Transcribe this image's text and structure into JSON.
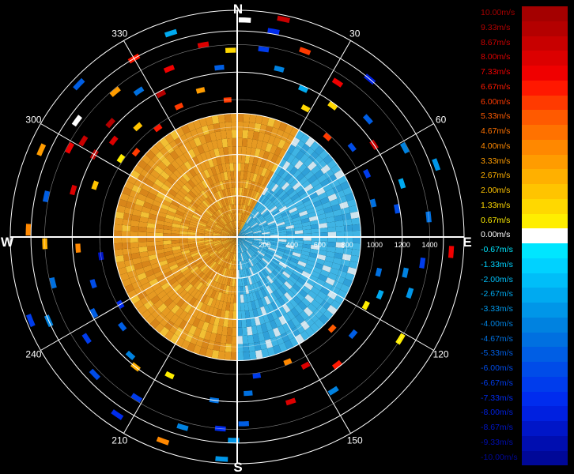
{
  "chart_data": {
    "type": "polar-radar",
    "cardinals": {
      "n": "N",
      "e": "E",
      "s": "S",
      "w": "W"
    },
    "angle_labels": [
      {
        "deg": 30,
        "text": "30"
      },
      {
        "deg": 60,
        "text": "60"
      },
      {
        "deg": 120,
        "text": "120"
      },
      {
        "deg": 150,
        "text": "150"
      },
      {
        "deg": 210,
        "text": "210"
      },
      {
        "deg": 240,
        "text": "240"
      },
      {
        "deg": 300,
        "text": "300"
      },
      {
        "deg": 330,
        "text": "330"
      }
    ],
    "range_rings": [
      200,
      400,
      600,
      800,
      1000,
      1200,
      1400
    ],
    "range_labels": [
      "200",
      "400",
      "600",
      "800",
      "1000",
      "1200",
      "1400"
    ],
    "rmax": 1650,
    "legend": {
      "entries": [
        {
          "label": "10.00m/s",
          "color": "#a40000"
        },
        {
          "label": "9.33m/s",
          "color": "#b40000"
        },
        {
          "label": "8.67m/s",
          "color": "#c80000"
        },
        {
          "label": "8.00m/s",
          "color": "#dc0000"
        },
        {
          "label": "7.33m/s",
          "color": "#f00000"
        },
        {
          "label": "6.67m/s",
          "color": "#ff1800"
        },
        {
          "label": "6.00m/s",
          "color": "#ff3a00"
        },
        {
          "label": "5.33m/s",
          "color": "#ff5a00"
        },
        {
          "label": "4.67m/s",
          "color": "#ff7200"
        },
        {
          "label": "4.00m/s",
          "color": "#ff8800"
        },
        {
          "label": "3.33m/s",
          "color": "#ff9c00"
        },
        {
          "label": "2.67m/s",
          "color": "#ffb000"
        },
        {
          "label": "2.00m/s",
          "color": "#ffc400"
        },
        {
          "label": "1.33m/s",
          "color": "#ffd800"
        },
        {
          "label": "0.67m/s",
          "color": "#ffee00"
        },
        {
          "label": "0.00m/s",
          "color": "#ffffff"
        },
        {
          "label": "-0.67m/s",
          "color": "#00e6ff"
        },
        {
          "label": "-1.33m/s",
          "color": "#00d2ff"
        },
        {
          "label": "-2.00m/s",
          "color": "#00bef8"
        },
        {
          "label": "-2.67m/s",
          "color": "#00aaf0"
        },
        {
          "label": "-3.33m/s",
          "color": "#0096e8"
        },
        {
          "label": "-4.00m/s",
          "color": "#0082e0"
        },
        {
          "label": "-4.67m/s",
          "color": "#0070e0"
        },
        {
          "label": "-5.33m/s",
          "color": "#005ee4"
        },
        {
          "label": "-6.00m/s",
          "color": "#004ce8"
        },
        {
          "label": "-6.67m/s",
          "color": "#003cec"
        },
        {
          "label": "-7.33m/s",
          "color": "#002cee"
        },
        {
          "label": "-8.00m/s",
          "color": "#0020e0"
        },
        {
          "label": "-8.67m/s",
          "color": "#0016c8"
        },
        {
          "label": "-9.33m/s",
          "color": "#000eb0"
        },
        {
          "label": "-10.00m/s",
          "color": "#000898"
        }
      ]
    },
    "core": {
      "range_max": 900,
      "approaching_color": "#e69a22",
      "receding_color": "#3fb4e4"
    },
    "echoes": [
      {
        "az": 2,
        "range": 1580,
        "v": 0
      },
      {
        "az": 10,
        "range": 1520,
        "v": -7.3
      },
      {
        "az": 12,
        "range": 1620,
        "v": 8.7
      },
      {
        "az": 8,
        "range": 1380,
        "v": -6.7
      },
      {
        "az": 14,
        "range": 1260,
        "v": -4.0
      },
      {
        "az": 20,
        "range": 1440,
        "v": 6.0
      },
      {
        "az": 24,
        "range": 1180,
        "v": -2.7
      },
      {
        "az": 28,
        "range": 1060,
        "v": 1.3
      },
      {
        "az": 33,
        "range": 1340,
        "v": 7.3
      },
      {
        "az": 36,
        "range": 1180,
        "v": 1.3
      },
      {
        "az": 40,
        "range": 1500,
        "v": -8.0
      },
      {
        "az": 42,
        "range": 980,
        "v": 6.0
      },
      {
        "az": 48,
        "range": 1280,
        "v": -5.3
      },
      {
        "az": 52,
        "range": 1060,
        "v": -6.0
      },
      {
        "az": 56,
        "range": 1200,
        "v": 8.7
      },
      {
        "az": 62,
        "range": 1380,
        "v": -4.0
      },
      {
        "az": 64,
        "range": 1050,
        "v": -6.7
      },
      {
        "az": 70,
        "range": 1540,
        "v": -3.3
      },
      {
        "az": 72,
        "range": 1260,
        "v": -2.7
      },
      {
        "az": 76,
        "range": 1020,
        "v": -4.7
      },
      {
        "az": 80,
        "range": 1180,
        "v": -6.0
      },
      {
        "az": 84,
        "range": 1400,
        "v": -4.7
      },
      {
        "az": 94,
        "range": 1560,
        "v": 7.3
      },
      {
        "az": 98,
        "range": 1360,
        "v": -6.7
      },
      {
        "az": 102,
        "range": 1250,
        "v": -4.0
      },
      {
        "az": 104,
        "range": 1060,
        "v": -4.7
      },
      {
        "az": 108,
        "range": 1320,
        "v": -3.3
      },
      {
        "az": 112,
        "range": 1120,
        "v": -2.7
      },
      {
        "az": 118,
        "range": 1060,
        "v": 0.7
      },
      {
        "az": 122,
        "range": 1400,
        "v": 0.7
      },
      {
        "az": 130,
        "range": 1100,
        "v": -5.3
      },
      {
        "az": 134,
        "range": 960,
        "v": 5.3
      },
      {
        "az": 142,
        "range": 1180,
        "v": 6.7
      },
      {
        "az": 148,
        "range": 1320,
        "v": -4.0
      },
      {
        "az": 152,
        "range": 1060,
        "v": 8.0
      },
      {
        "az": 158,
        "range": 980,
        "v": 4.0
      },
      {
        "az": 162,
        "range": 1260,
        "v": 8.0
      },
      {
        "az": 172,
        "range": 1020,
        "v": -6.7
      },
      {
        "az": 176,
        "range": 1140,
        "v": -4.7
      },
      {
        "az": 178,
        "range": 1360,
        "v": -5.3
      },
      {
        "az": 181,
        "range": 1480,
        "v": -3.3
      },
      {
        "az": 185,
        "range": 1400,
        "v": -7.3
      },
      {
        "az": 184,
        "range": 1620,
        "v": -3.3
      },
      {
        "az": 188,
        "range": 1200,
        "v": -4.7
      },
      {
        "az": 196,
        "range": 1440,
        "v": -4.0
      },
      {
        "az": 200,
        "range": 1580,
        "v": 4.0
      },
      {
        "az": 206,
        "range": 1120,
        "v": 0.7
      },
      {
        "az": 212,
        "range": 1380,
        "v": -6.7
      },
      {
        "az": 214,
        "range": 1560,
        "v": -7.3
      },
      {
        "az": 218,
        "range": 1200,
        "v": 2.7
      },
      {
        "az": 222,
        "range": 1160,
        "v": -4.0
      },
      {
        "az": 226,
        "range": 1440,
        "v": -6.0
      },
      {
        "az": 232,
        "range": 1060,
        "v": -5.3
      },
      {
        "az": 236,
        "range": 1320,
        "v": -6.7
      },
      {
        "az": 240,
        "range": 980,
        "v": -7.3
      },
      {
        "az": 242,
        "range": 1180,
        "v": -5.3
      },
      {
        "az": 246,
        "range": 1500,
        "v": -4.0
      },
      {
        "az": 248,
        "range": 1620,
        "v": -6.7
      },
      {
        "az": 252,
        "range": 1100,
        "v": -6.0
      },
      {
        "az": 256,
        "range": 1380,
        "v": -4.7
      },
      {
        "az": 262,
        "range": 1000,
        "v": -8.7
      },
      {
        "az": 266,
        "range": 1160,
        "v": 4.0
      },
      {
        "az": 268,
        "range": 1400,
        "v": 2.7
      },
      {
        "az": 272,
        "range": 1520,
        "v": 4.0
      },
      {
        "az": 282,
        "range": 1420,
        "v": -5.3
      },
      {
        "az": 286,
        "range": 1240,
        "v": 8.0
      },
      {
        "az": 290,
        "range": 1100,
        "v": 2.0
      },
      {
        "az": 294,
        "range": 1560,
        "v": 3.3
      },
      {
        "az": 298,
        "range": 1380,
        "v": 7.3
      },
      {
        "az": 300,
        "range": 1200,
        "v": 9.3
      },
      {
        "az": 302,
        "range": 1320,
        "v": 8.7
      },
      {
        "az": 304,
        "range": 1020,
        "v": 0.7
      },
      {
        "az": 306,
        "range": 1440,
        "v": 0
      },
      {
        "az": 308,
        "range": 1140,
        "v": 8.0
      },
      {
        "az": 310,
        "range": 960,
        "v": 6.0
      },
      {
        "az": 312,
        "range": 1240,
        "v": 9.3
      },
      {
        "az": 314,
        "range": 1600,
        "v": -5.3
      },
      {
        "az": 318,
        "range": 1080,
        "v": 2.0
      },
      {
        "az": 320,
        "range": 1380,
        "v": 3.3
      },
      {
        "az": 324,
        "range": 980,
        "v": 6.7
      },
      {
        "az": 326,
        "range": 1280,
        "v": -4.7
      },
      {
        "az": 330,
        "range": 1500,
        "v": 6.7
      },
      {
        "az": 332,
        "range": 1180,
        "v": 9.3
      },
      {
        "az": 336,
        "range": 1040,
        "v": 6.0
      },
      {
        "az": 338,
        "range": 1320,
        "v": 7.3
      },
      {
        "az": 342,
        "range": 1560,
        "v": -2.7
      },
      {
        "az": 346,
        "range": 1100,
        "v": 3.3
      },
      {
        "az": 350,
        "range": 1420,
        "v": 8.0
      },
      {
        "az": 354,
        "range": 1240,
        "v": -5.3
      },
      {
        "az": 356,
        "range": 1000,
        "v": 6.0
      },
      {
        "az": 358,
        "range": 1360,
        "v": 1.3
      }
    ]
  }
}
